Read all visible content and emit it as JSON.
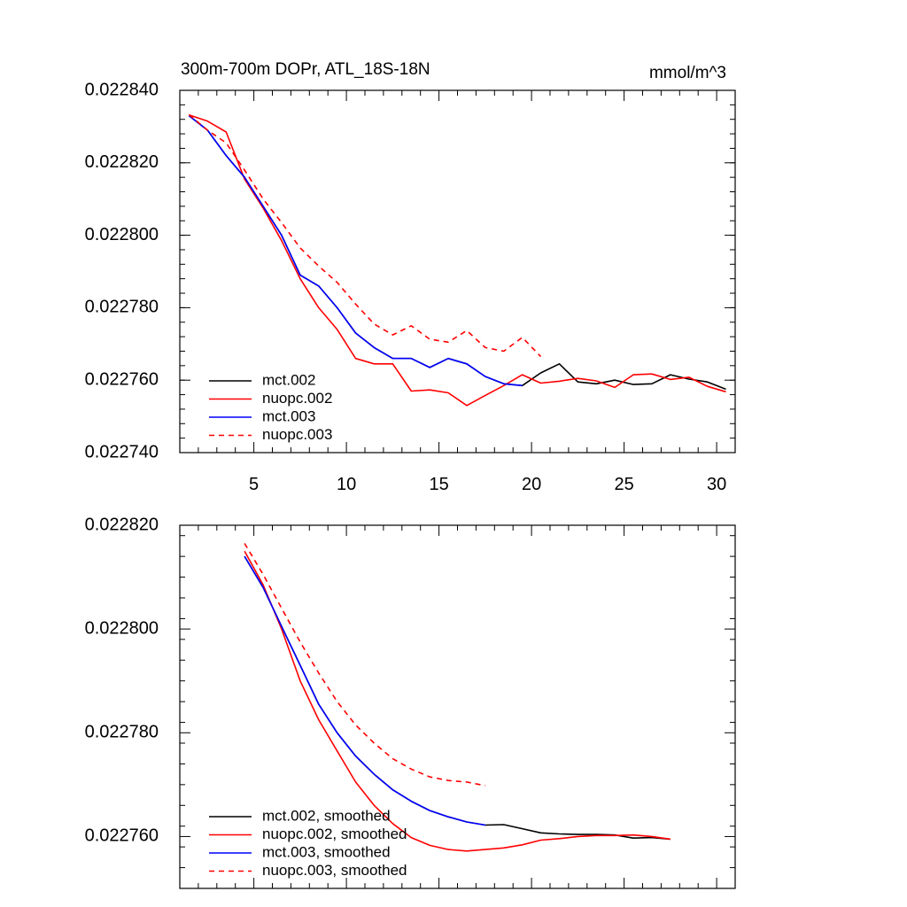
{
  "chart_data": [
    {
      "type": "line",
      "title": "300m-700m DOPr, ATL_18S-18N",
      "units": "mmol/m^3",
      "xlabel": "",
      "ylabel": "",
      "xlim": [
        1,
        31
      ],
      "ylim": [
        0.02274,
        0.02284
      ],
      "x_ticks": [
        5,
        10,
        15,
        20,
        25,
        30
      ],
      "y_ticks": [
        0.02274,
        0.02276,
        0.02278,
        0.0228,
        0.02282,
        0.02284
      ],
      "y_tick_labels": [
        "0.022740",
        "0.022760",
        "0.022780",
        "0.022800",
        "0.022820",
        "0.022840"
      ],
      "legend_position": "bottom-left",
      "series": [
        {
          "name": "mct.002",
          "color": "#000000",
          "dash": "solid",
          "x": [
            1.5,
            2.5,
            3.5,
            4.5,
            5.5,
            6.5,
            7.5,
            8.5,
            9.5,
            10.5,
            11.5,
            12.5,
            13.5,
            14.5,
            15.5,
            16.5,
            17.5,
            18.5,
            19.5,
            20.5,
            21.5,
            22.5,
            23.5,
            24.5,
            25.5,
            26.5,
            27.5,
            28.5,
            29.5,
            30.5
          ],
          "y": [
            0.022833,
            0.022829,
            0.022822,
            0.022816,
            0.022808,
            0.0228,
            0.022789,
            0.022786,
            0.02278,
            0.022773,
            0.022769,
            0.022766,
            0.022766,
            0.0227635,
            0.022766,
            0.0227645,
            0.022761,
            0.022759,
            0.0227585,
            0.022762,
            0.0227645,
            0.0227595,
            0.022759,
            0.02276,
            0.0227588,
            0.022759,
            0.0227615,
            0.0227603,
            0.0227595,
            0.0227575
          ]
        },
        {
          "name": "nuopc.002",
          "color": "#ff0000",
          "dash": "solid",
          "x": [
            1.5,
            2.5,
            3.5,
            4.5,
            5.5,
            6.5,
            7.5,
            8.5,
            9.5,
            10.5,
            11.5,
            12.5,
            13.5,
            14.5,
            15.5,
            16.5,
            17.5,
            18.5,
            19.5,
            20.5,
            21.5,
            22.5,
            23.5,
            24.5,
            25.5,
            26.5,
            27.5,
            28.5,
            29.5,
            30.5
          ],
          "y": [
            0.0228332,
            0.0228315,
            0.0228285,
            0.0228155,
            0.0228075,
            0.0227985,
            0.022788,
            0.02278,
            0.022774,
            0.022766,
            0.0227645,
            0.0227645,
            0.022757,
            0.0227573,
            0.0227565,
            0.022753,
            0.0227558,
            0.0227585,
            0.0227615,
            0.0227592,
            0.0227597,
            0.0227605,
            0.0227598,
            0.022758,
            0.0227615,
            0.0227617,
            0.0227602,
            0.0227608,
            0.0227583,
            0.0227568
          ]
        },
        {
          "name": "mct.003",
          "color": "#0000ff",
          "dash": "solid",
          "x": [
            1.5,
            2.5,
            3.5,
            4.5,
            5.5,
            6.5,
            7.5,
            8.5,
            9.5,
            10.5,
            11.5,
            12.5,
            13.5,
            14.5,
            15.5,
            16.5,
            17.5,
            18.5,
            19.5
          ],
          "y": [
            0.022833,
            0.022829,
            0.022822,
            0.022816,
            0.022808,
            0.0228,
            0.022789,
            0.022786,
            0.02278,
            0.022773,
            0.022769,
            0.022766,
            0.022766,
            0.0227635,
            0.022766,
            0.0227645,
            0.022761,
            0.022759,
            0.0227585
          ]
        },
        {
          "name": "nuopc.003",
          "color": "#ff0000",
          "dash": "dashed",
          "x": [
            1.5,
            2.5,
            3.5,
            4.5,
            5.5,
            6.5,
            7.5,
            8.5,
            9.5,
            10.5,
            11.5,
            12.5,
            13.5,
            14.5,
            15.5,
            16.5,
            17.5,
            18.5,
            19.5,
            20.5
          ],
          "y": [
            0.0228333,
            0.022829,
            0.0228255,
            0.022818,
            0.02281,
            0.0228035,
            0.0227965,
            0.0227915,
            0.022787,
            0.022781,
            0.0227755,
            0.0227725,
            0.022775,
            0.0227713,
            0.0227705,
            0.0227737,
            0.022769,
            0.022768,
            0.0227718,
            0.0227665
          ]
        }
      ]
    },
    {
      "type": "line",
      "title": "",
      "xlabel": "",
      "ylabel": "",
      "xlim": [
        1,
        31
      ],
      "ylim": [
        0.02275,
        0.02282
      ],
      "x_ticks": [
        5,
        10,
        15,
        20,
        25,
        30
      ],
      "y_ticks": [
        0.02276,
        0.02278,
        0.0228,
        0.02282
      ],
      "y_tick_labels": [
        "0.022760",
        "0.022780",
        "0.022800",
        "0.022820"
      ],
      "legend_position": "bottom-left",
      "series": [
        {
          "name": "mct.002, smoothed",
          "color": "#000000",
          "dash": "solid",
          "x": [
            4.5,
            5.5,
            6.5,
            7.5,
            8.5,
            9.5,
            10.5,
            11.5,
            12.5,
            13.5,
            14.5,
            15.5,
            16.5,
            17.5,
            18.5,
            19.5,
            20.5,
            21.5,
            22.5,
            23.5,
            24.5,
            25.5,
            26.5,
            27.5
          ],
          "y": [
            0.022814,
            0.022808,
            0.0228005,
            0.022793,
            0.0227855,
            0.02278,
            0.0227755,
            0.022772,
            0.022769,
            0.0227668,
            0.022765,
            0.0227638,
            0.0227628,
            0.0227622,
            0.0227623,
            0.0227615,
            0.0227607,
            0.0227605,
            0.0227604,
            0.0227604,
            0.0227603,
            0.0227597,
            0.0227598,
            0.0227595
          ]
        },
        {
          "name": "nuopc.002, smoothed",
          "color": "#ff0000",
          "dash": "solid",
          "x": [
            4.5,
            5.5,
            6.5,
            7.5,
            8.5,
            9.5,
            10.5,
            11.5,
            12.5,
            13.5,
            14.5,
            15.5,
            16.5,
            17.5,
            18.5,
            19.5,
            20.5,
            21.5,
            22.5,
            23.5,
            24.5,
            25.5,
            26.5,
            27.5
          ],
          "y": [
            0.022815,
            0.0228085,
            0.0228,
            0.02279,
            0.0227825,
            0.0227765,
            0.0227705,
            0.022766,
            0.0227625,
            0.0227598,
            0.0227583,
            0.0227575,
            0.0227572,
            0.0227575,
            0.0227578,
            0.0227584,
            0.0227593,
            0.0227596,
            0.02276,
            0.0227602,
            0.0227602,
            0.0227603,
            0.02276,
            0.0227595
          ]
        },
        {
          "name": "mct.003, smoothed",
          "color": "#0000ff",
          "dash": "solid",
          "x": [
            4.5,
            5.5,
            6.5,
            7.5,
            8.5,
            9.5,
            10.5,
            11.5,
            12.5,
            13.5,
            14.5,
            15.5,
            16.5,
            17.5
          ],
          "y": [
            0.022814,
            0.022808,
            0.0228005,
            0.022793,
            0.0227855,
            0.02278,
            0.0227755,
            0.022772,
            0.022769,
            0.0227668,
            0.022765,
            0.0227638,
            0.0227628,
            0.0227622
          ]
        },
        {
          "name": "nuopc.003, smoothed",
          "color": "#ff0000",
          "dash": "dashed",
          "x": [
            4.5,
            5.5,
            6.5,
            7.5,
            8.5,
            9.5,
            10.5,
            11.5,
            12.5,
            13.5,
            14.5,
            15.5,
            16.5,
            17.5
          ],
          "y": [
            0.0228165,
            0.0228105,
            0.022804,
            0.0227975,
            0.0227915,
            0.022786,
            0.0227815,
            0.022778,
            0.022775,
            0.022773,
            0.0227715,
            0.0227708,
            0.0227705,
            0.0227698
          ]
        }
      ]
    }
  ]
}
